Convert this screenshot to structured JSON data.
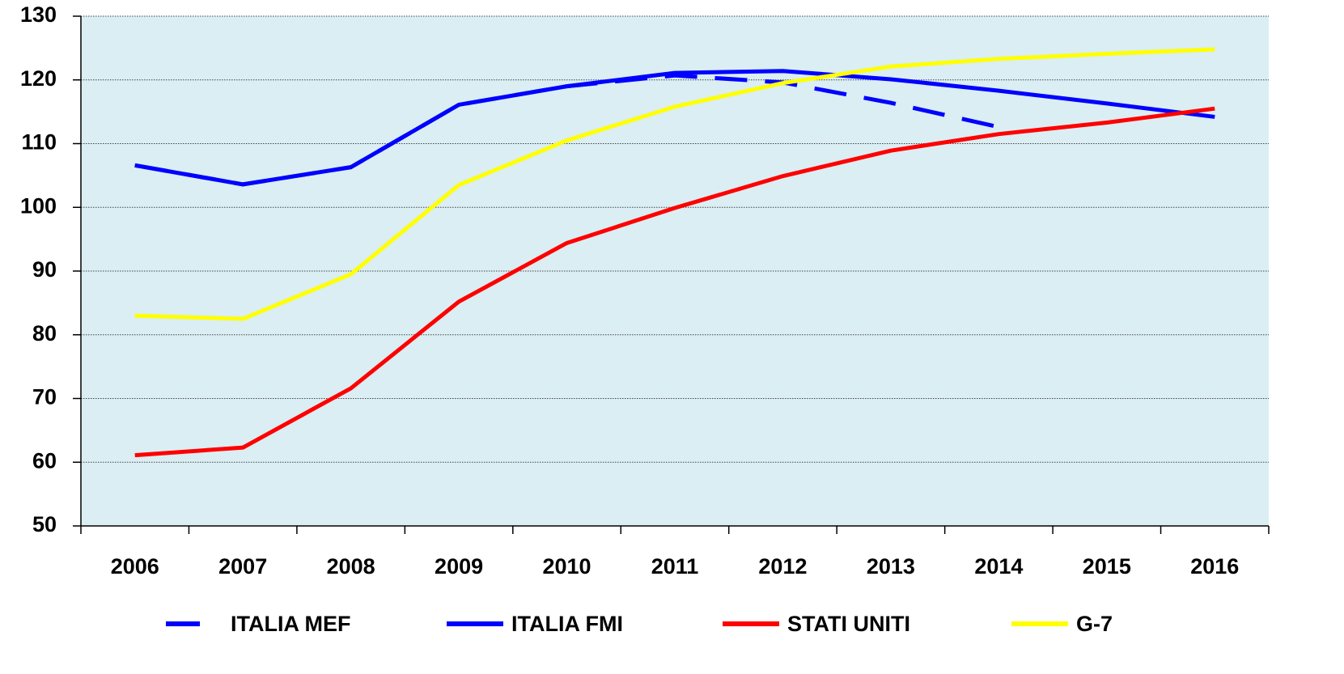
{
  "chart_data": {
    "type": "line",
    "categories": [
      "2006",
      "2007",
      "2008",
      "2009",
      "2010",
      "2011",
      "2012",
      "2013",
      "2014",
      "2015",
      "2016"
    ],
    "series": [
      {
        "name": "ITALIA MEF",
        "color": "#0000ff",
        "dash": true,
        "values": [
          106.6,
          103.6,
          106.3,
          116.1,
          119.0,
          120.7,
          119.6,
          116.4,
          112.6,
          null,
          null
        ]
      },
      {
        "name": "ITALIA FMI",
        "color": "#0000ff",
        "values": [
          106.6,
          103.6,
          106.3,
          116.1,
          119.0,
          121.1,
          121.4,
          120.1,
          118.3,
          116.3,
          114.2
        ]
      },
      {
        "name": "STATI UNITI",
        "color": "#ff0000",
        "values": [
          61.1,
          62.3,
          71.6,
          85.2,
          94.4,
          99.9,
          104.9,
          108.9,
          111.5,
          113.3,
          115.5
        ]
      },
      {
        "name": "G-7",
        "color": "#ffff00",
        "values": [
          83.0,
          82.5,
          89.5,
          103.5,
          110.5,
          115.8,
          119.5,
          122.1,
          123.3,
          124.1,
          124.8
        ]
      }
    ],
    "ylim": [
      50,
      130
    ],
    "yticks": [
      50,
      60,
      70,
      80,
      90,
      100,
      110,
      120,
      130
    ],
    "grid": true,
    "legend": "bottom"
  }
}
